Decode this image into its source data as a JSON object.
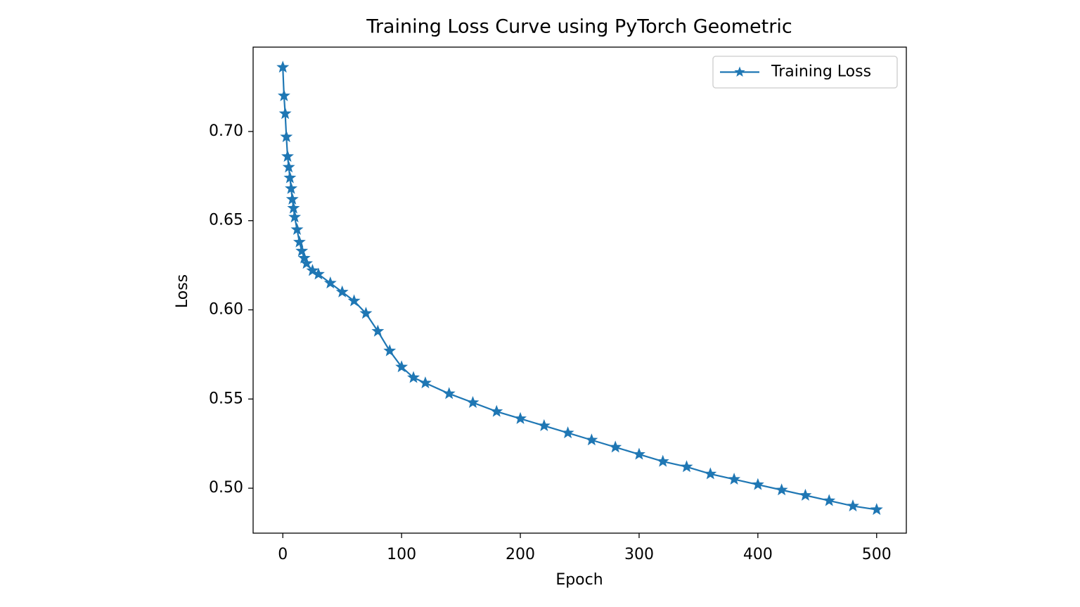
{
  "chart_data": {
    "type": "line",
    "title": "Training Loss Curve using PyTorch Geometric",
    "x_label": "Epoch",
    "y_label": "Loss",
    "x": [
      0,
      1,
      2,
      3,
      4,
      5,
      6,
      7,
      8,
      9,
      10,
      12,
      14,
      16,
      18,
      20,
      25,
      30,
      40,
      50,
      60,
      70,
      80,
      90,
      100,
      110,
      120,
      140,
      160,
      180,
      200,
      220,
      240,
      260,
      280,
      300,
      320,
      340,
      360,
      380,
      400,
      420,
      440,
      460,
      480,
      500
    ],
    "series": [
      {
        "name": "Training Loss",
        "color": "#1f77b4",
        "values": [
          0.736,
          0.72,
          0.71,
          0.697,
          0.686,
          0.68,
          0.674,
          0.668,
          0.662,
          0.657,
          0.652,
          0.645,
          0.638,
          0.633,
          0.629,
          0.626,
          0.622,
          0.62,
          0.615,
          0.61,
          0.605,
          0.598,
          0.588,
          0.577,
          0.568,
          0.562,
          0.559,
          0.553,
          0.548,
          0.543,
          0.539,
          0.535,
          0.531,
          0.527,
          0.523,
          0.519,
          0.515,
          0.512,
          0.508,
          0.505,
          0.502,
          0.499,
          0.496,
          0.493,
          0.49,
          0.488
        ]
      }
    ],
    "xlim": [
      -25,
      525
    ],
    "xticks": [
      0,
      100,
      200,
      300,
      400,
      500
    ],
    "ylim": [
      0.4748,
      0.7473
    ],
    "yticks": [
      {
        "value": 0.5,
        "label": "0.50"
      },
      {
        "value": 0.55,
        "label": "0.55"
      },
      {
        "value": 0.6,
        "label": "0.60"
      },
      {
        "value": 0.65,
        "label": "0.65"
      },
      {
        "value": 0.7,
        "label": "0.70"
      }
    ],
    "legend": "upper right",
    "marker": "star"
  }
}
